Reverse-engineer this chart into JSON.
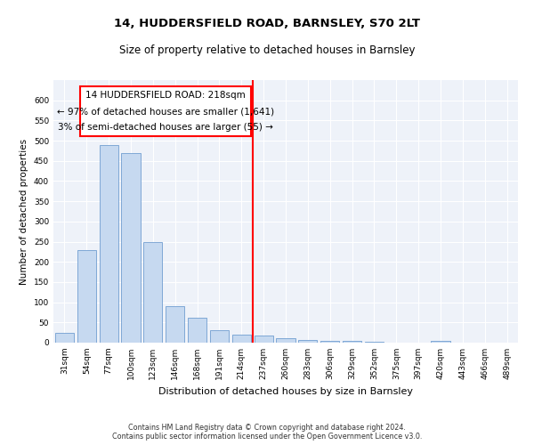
{
  "title1": "14, HUDDERSFIELD ROAD, BARNSLEY, S70 2LT",
  "title2": "Size of property relative to detached houses in Barnsley",
  "xlabel": "Distribution of detached houses by size in Barnsley",
  "ylabel": "Number of detached properties",
  "bar_color": "#c6d9f0",
  "bar_edge_color": "#5b8fc9",
  "background_color": "#eef2f9",
  "grid_color": "#ffffff",
  "categories": [
    "31sqm",
    "54sqm",
    "77sqm",
    "100sqm",
    "123sqm",
    "146sqm",
    "168sqm",
    "191sqm",
    "214sqm",
    "237sqm",
    "260sqm",
    "283sqm",
    "306sqm",
    "329sqm",
    "352sqm",
    "375sqm",
    "397sqm",
    "420sqm",
    "443sqm",
    "466sqm",
    "489sqm"
  ],
  "values": [
    25,
    230,
    490,
    470,
    250,
    90,
    62,
    30,
    20,
    18,
    10,
    7,
    5,
    5,
    3,
    0,
    0,
    4,
    0,
    1,
    0
  ],
  "property_line_label": "14 HUDDERSFIELD ROAD: 218sqm",
  "annotation_line1": "← 97% of detached houses are smaller (1,641)",
  "annotation_line2": "3% of semi-detached houses are larger (55) →",
  "ylim_max": 650,
  "yticks": [
    0,
    50,
    100,
    150,
    200,
    250,
    300,
    350,
    400,
    450,
    500,
    550,
    600
  ],
  "footnote": "Contains HM Land Registry data © Crown copyright and database right 2024.\nContains public sector information licensed under the Open Government Licence v3.0.",
  "title_fontsize": 9.5,
  "subtitle_fontsize": 8.5,
  "tick_fontsize": 6.5,
  "xlabel_fontsize": 8,
  "ylabel_fontsize": 7.5,
  "annotation_fontsize": 7.5,
  "footnote_fontsize": 5.8
}
